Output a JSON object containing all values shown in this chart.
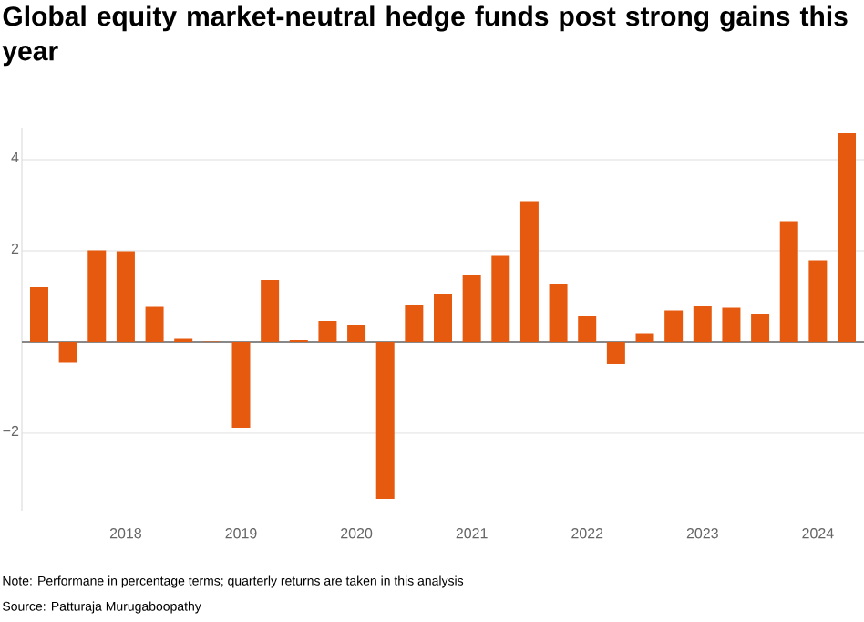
{
  "chart_data": {
    "type": "bar",
    "title": "Global equity market-neutral hedge funds post strong gains this year",
    "categories": [
      null,
      null,
      null,
      "2018",
      null,
      null,
      null,
      "2019",
      null,
      null,
      null,
      "2020",
      null,
      null,
      null,
      "2021",
      null,
      null,
      null,
      "2022",
      null,
      null,
      null,
      "2023",
      null,
      null,
      null,
      "2024",
      null
    ],
    "values": [
      1.2,
      -0.45,
      2.01,
      1.99,
      0.77,
      0.07,
      0.01,
      -1.88,
      1.36,
      0.04,
      0.46,
      0.38,
      -3.44,
      0.82,
      1.06,
      1.47,
      1.89,
      3.09,
      1.28,
      0.56,
      -0.48,
      0.19,
      0.69,
      0.78,
      0.75,
      0.62,
      2.65,
      1.79,
      4.58
    ],
    "color": "#e65a0f",
    "ylim": [
      -3.7,
      4.7
    ],
    "yticks": [
      {
        "value": -2,
        "label": "−2"
      },
      {
        "value": 0,
        "label": null
      },
      2,
      4
    ],
    "grid": "y",
    "annotations": [
      "Note: Performane in percentage terms; quarterly returns are taken in this analysis",
      "Source: Patturaja Murugaboopathy"
    ]
  }
}
